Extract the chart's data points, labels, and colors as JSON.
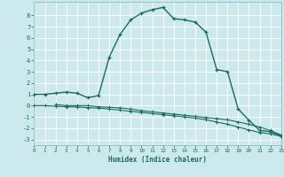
{
  "xlabel": "Humidex (Indice chaleur)",
  "bg_color": "#cce9ed",
  "grid_color": "#ffffff",
  "line_color": "#1a6b5e",
  "xlim": [
    0,
    23
  ],
  "ylim": [
    -3.5,
    9.2
  ],
  "xticks": [
    0,
    1,
    2,
    3,
    4,
    5,
    6,
    7,
    8,
    9,
    10,
    11,
    12,
    13,
    14,
    15,
    16,
    17,
    18,
    19,
    20,
    21,
    22,
    23
  ],
  "yticks": [
    -3,
    -2,
    -1,
    0,
    1,
    2,
    3,
    4,
    5,
    6,
    7,
    8
  ],
  "curve1_x": [
    0,
    1,
    2,
    3,
    4,
    5,
    6,
    7,
    8,
    9,
    10,
    11,
    12,
    13,
    14,
    15,
    16,
    17,
    18,
    19,
    20,
    21,
    22,
    23
  ],
  "curve1_y": [
    1.0,
    1.0,
    1.1,
    1.2,
    1.1,
    0.7,
    0.9,
    4.3,
    6.3,
    7.6,
    8.2,
    8.5,
    8.7,
    7.7,
    7.6,
    7.4,
    6.5,
    3.2,
    3.0,
    -0.3,
    -1.3,
    -2.2,
    -2.3,
    -2.7
  ],
  "curve2_x": [
    2,
    3,
    4,
    5,
    6,
    7,
    8,
    9,
    10,
    11,
    12,
    13,
    14,
    15,
    16,
    17,
    18,
    19,
    20,
    21,
    22,
    23
  ],
  "curve2_y": [
    0.1,
    0.0,
    0.0,
    0.0,
    -0.1,
    -0.15,
    -0.2,
    -0.3,
    -0.45,
    -0.55,
    -0.65,
    -0.75,
    -0.85,
    -0.95,
    -1.05,
    -1.15,
    -1.25,
    -1.45,
    -1.65,
    -1.9,
    -2.2,
    -2.6
  ],
  "curve3_x": [
    0,
    1,
    2,
    3,
    4,
    5,
    6,
    7,
    8,
    9,
    10,
    11,
    12,
    13,
    14,
    15,
    16,
    17,
    18,
    19,
    20,
    21,
    22,
    23
  ],
  "curve3_y": [
    0.0,
    0.0,
    -0.05,
    -0.1,
    -0.12,
    -0.18,
    -0.22,
    -0.3,
    -0.4,
    -0.5,
    -0.6,
    -0.7,
    -0.8,
    -0.9,
    -1.0,
    -1.1,
    -1.25,
    -1.45,
    -1.65,
    -1.9,
    -2.15,
    -2.38,
    -2.5,
    -2.72
  ]
}
